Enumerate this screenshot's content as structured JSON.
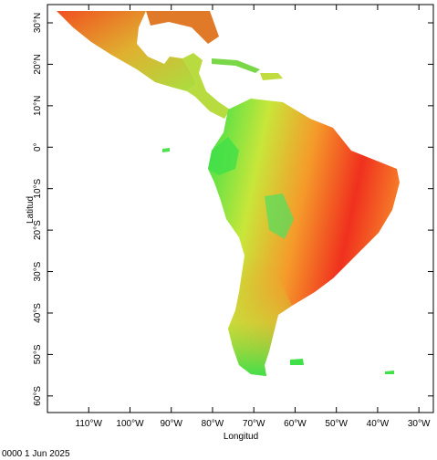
{
  "map": {
    "x_axis": {
      "label": "Longitud",
      "lim": [
        -120,
        -26.5
      ],
      "ticks": [
        {
          "value": -110,
          "label": "110°W"
        },
        {
          "value": -100,
          "label": "100°W"
        },
        {
          "value": -90,
          "label": "90°W"
        },
        {
          "value": -80,
          "label": "80°W"
        },
        {
          "value": -70,
          "label": "70°W"
        },
        {
          "value": -60,
          "label": "60°W"
        },
        {
          "value": -50,
          "label": "50°W"
        },
        {
          "value": -40,
          "label": "40°W"
        },
        {
          "value": -30,
          "label": "30°W"
        }
      ]
    },
    "y_axis": {
      "label": "Latitud",
      "lim": [
        -64,
        34.4
      ],
      "ticks": [
        {
          "value": 30,
          "label": "30°N"
        },
        {
          "value": 20,
          "label": "20°N"
        },
        {
          "value": 10,
          "label": "10°N"
        },
        {
          "value": 0,
          "label": "0°"
        },
        {
          "value": -10,
          "label": "10°S"
        },
        {
          "value": -20,
          "label": "20°S"
        },
        {
          "value": -30,
          "label": "30°S"
        },
        {
          "value": -40,
          "label": "40°S"
        },
        {
          "value": -50,
          "label": "50°S"
        },
        {
          "value": -60,
          "label": "60°S"
        }
      ]
    },
    "timestamp": "0000 1 Jun 2025"
  }
}
